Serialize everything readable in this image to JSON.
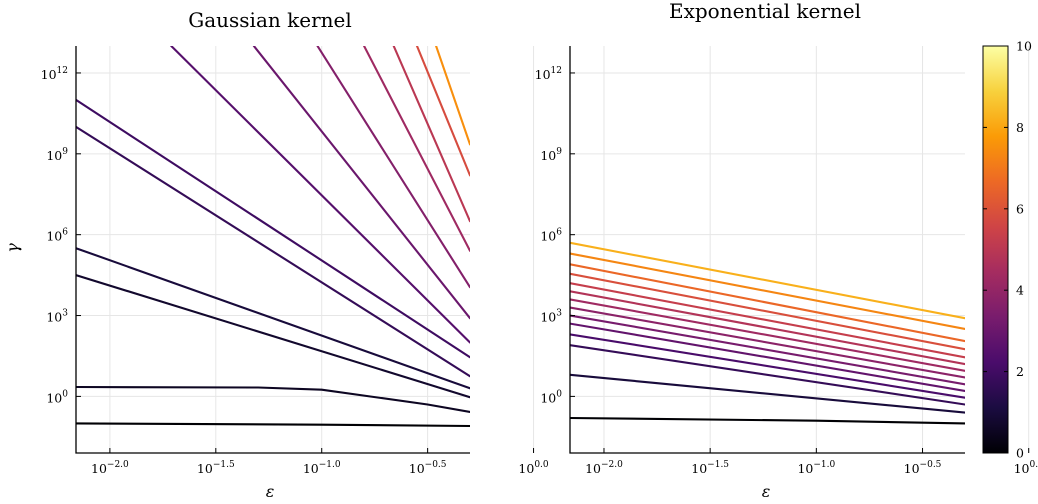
{
  "chart_data": [
    {
      "type": "line",
      "title": "Gaussian kernel",
      "xlabel": "ε",
      "ylabel": "γ",
      "xscale": "log10",
      "yscale": "log10",
      "x_ticks": [
        "10^-2.0",
        "10^-1.5",
        "10^-1.0",
        "10^-0.5",
        "10^0.0"
      ],
      "y_ticks": [
        "10^0",
        "10^3",
        "10^6",
        "10^9",
        "10^12"
      ],
      "xlim_log10": [
        -2.16,
        -0.3
      ],
      "ylim_log10": [
        -2.1,
        13.0
      ],
      "grid": true,
      "series": [
        {
          "value": 0,
          "x_log10": [
            -2.16,
            -1.0,
            -0.3
          ],
          "y_log10": [
            -1.0,
            -1.05,
            -1.1
          ]
        },
        {
          "value": 0.55,
          "x_log10": [
            -2.16,
            -1.3,
            -1.0,
            -0.5,
            -0.3
          ],
          "y_log10": [
            0.35,
            0.33,
            0.25,
            -0.3,
            -0.58
          ]
        },
        {
          "value": 0.75,
          "x_log10": [
            -2.16,
            -0.3
          ],
          "y_log10": [
            4.5,
            -0.03
          ]
        },
        {
          "value": 1.0,
          "x_log10": [
            -2.16,
            -0.3
          ],
          "y_log10": [
            5.5,
            0.3
          ]
        },
        {
          "value": 1.7,
          "x_log10": [
            -2.16,
            -0.3
          ],
          "y_log10": [
            10.0,
            0.75
          ]
        },
        {
          "value": 1.95,
          "x_log10": [
            -2.16,
            -0.3
          ],
          "y_log10": [
            11.0,
            1.45
          ]
        },
        {
          "value": 2.5,
          "x_log10": [
            -1.71,
            -0.3
          ],
          "y_log10": [
            13.0,
            2.0
          ]
        },
        {
          "value": 3.0,
          "x_log10": [
            -1.32,
            -0.3
          ],
          "y_log10": [
            13.0,
            2.9
          ]
        },
        {
          "value": 3.6,
          "x_log10": [
            -1.02,
            -0.3
          ],
          "y_log10": [
            13.0,
            4.05
          ]
        },
        {
          "value": 4.3,
          "x_log10": [
            -0.8,
            -0.3
          ],
          "y_log10": [
            13.0,
            5.4
          ]
        },
        {
          "value": 5.0,
          "x_log10": [
            -0.66,
            -0.3
          ],
          "y_log10": [
            13.0,
            6.5
          ]
        },
        {
          "value": 5.8,
          "x_log10": [
            -0.55,
            -0.3
          ],
          "y_log10": [
            13.0,
            8.2
          ]
        },
        {
          "value": 7.5,
          "x_log10": [
            -0.46,
            -0.3
          ],
          "y_log10": [
            13.0,
            9.35
          ]
        }
      ]
    },
    {
      "type": "line",
      "title": "Exponential kernel",
      "xlabel": "ε",
      "ylabel": "",
      "xscale": "log10",
      "yscale": "log10",
      "x_ticks": [
        "10^-2.0",
        "10^-1.5",
        "10^-1.0",
        "10^-0.5",
        "10^0.0"
      ],
      "y_ticks": [
        "10^0",
        "10^3",
        "10^6",
        "10^9",
        "10^12"
      ],
      "xlim_log10": [
        -2.16,
        -0.3
      ],
      "ylim_log10": [
        -2.1,
        13.0
      ],
      "grid": true,
      "series": [
        {
          "value": 0,
          "x_log10": [
            -2.16,
            -1.0,
            -0.3
          ],
          "y_log10": [
            -0.8,
            -0.9,
            -1.0
          ]
        },
        {
          "value": 1.0,
          "x_log10": [
            -2.16,
            -0.3
          ],
          "y_log10": [
            0.8,
            -0.6
          ]
        },
        {
          "value": 1.7,
          "x_log10": [
            -2.16,
            -0.3
          ],
          "y_log10": [
            1.9,
            -0.3
          ]
        },
        {
          "value": 2.2,
          "x_log10": [
            -2.16,
            -0.3
          ],
          "y_log10": [
            2.3,
            -0.05
          ]
        },
        {
          "value": 2.8,
          "x_log10": [
            -2.16,
            -0.3
          ],
          "y_log10": [
            2.7,
            0.2
          ]
        },
        {
          "value": 3.3,
          "x_log10": [
            -2.16,
            -0.3
          ],
          "y_log10": [
            3.0,
            0.45
          ]
        },
        {
          "value": 3.8,
          "x_log10": [
            -2.16,
            -0.3
          ],
          "y_log10": [
            3.3,
            0.7
          ]
        },
        {
          "value": 4.3,
          "x_log10": [
            -2.16,
            -0.3
          ],
          "y_log10": [
            3.6,
            0.95
          ]
        },
        {
          "value": 4.8,
          "x_log10": [
            -2.16,
            -0.3
          ],
          "y_log10": [
            3.9,
            1.2
          ]
        },
        {
          "value": 5.3,
          "x_log10": [
            -2.16,
            -0.3
          ],
          "y_log10": [
            4.2,
            1.45
          ]
        },
        {
          "value": 5.9,
          "x_log10": [
            -2.16,
            -0.3
          ],
          "y_log10": [
            4.55,
            1.75
          ]
        },
        {
          "value": 6.6,
          "x_log10": [
            -2.16,
            -0.3
          ],
          "y_log10": [
            4.9,
            2.05
          ]
        },
        {
          "value": 7.3,
          "x_log10": [
            -2.16,
            -0.3
          ],
          "y_log10": [
            5.3,
            2.5
          ]
        },
        {
          "value": 8.2,
          "x_log10": [
            -2.16,
            -0.3
          ],
          "y_log10": [
            5.7,
            2.9
          ]
        }
      ]
    }
  ],
  "colorbar": {
    "min": 0,
    "max": 10,
    "ticks": [
      "0",
      "2",
      "4",
      "6",
      "8",
      "10"
    ],
    "colormap": "inferno",
    "stops": [
      "#000004",
      "#1b0c41",
      "#4a0c6b",
      "#781c6d",
      "#a52c60",
      "#cf4446",
      "#ed6925",
      "#fb9b06",
      "#f7d13d",
      "#fcffa4"
    ]
  }
}
